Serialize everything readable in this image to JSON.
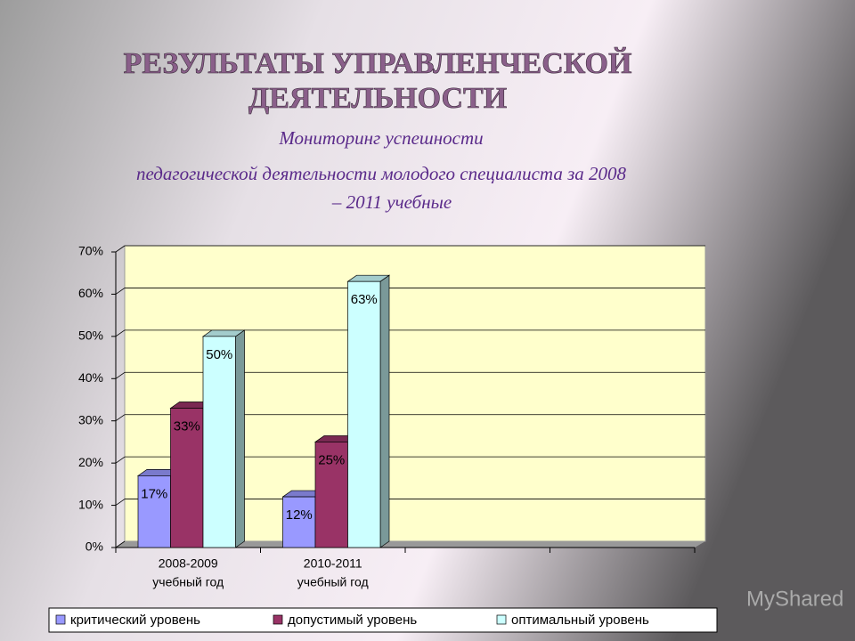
{
  "title_lines": [
    "РЕЗУЛЬТАТЫ УПРАВЛЕНЧЕСКОЙ",
    "ДЕЯТЕЛЬНОСТИ"
  ],
  "subtitle_lines": [
    "Мониторинг успешности",
    "педагогической деятельности молодого специалиста за 2008",
    "– 2011 учебные"
  ],
  "watermark": "MyShared",
  "chart_data": {
    "type": "bar",
    "categories": [
      [
        "2008-2009",
        "учебный год"
      ],
      [
        "2010-2011",
        "учебный год"
      ],
      null,
      null
    ],
    "series": [
      {
        "name": "критический уровень",
        "color": "#9999ff",
        "values": [
          17,
          12,
          null,
          null
        ],
        "value_labels": [
          "17%",
          "12%",
          null,
          null
        ]
      },
      {
        "name": "допустимый уровень",
        "color": "#993366",
        "values": [
          33,
          25,
          null,
          null
        ],
        "value_labels": [
          "33%",
          "25%",
          null,
          null
        ]
      },
      {
        "name": "оптимальный уровень",
        "color": "#ccffff",
        "values": [
          50,
          63,
          null,
          null
        ],
        "value_labels": [
          "50%",
          "63%",
          null,
          null
        ]
      }
    ],
    "ylim": [
      0,
      70
    ],
    "yticks": [
      {
        "value": 0,
        "label": "0%"
      },
      {
        "value": 10,
        "label": "10%"
      },
      {
        "value": 20,
        "label": "20%"
      },
      {
        "value": 30,
        "label": "30%"
      },
      {
        "value": 40,
        "label": "40%"
      },
      {
        "value": 50,
        "label": "50%"
      },
      {
        "value": 60,
        "label": "60%"
      },
      {
        "value": 70,
        "label": "70%"
      }
    ],
    "grid": true,
    "legend": "bottom"
  }
}
